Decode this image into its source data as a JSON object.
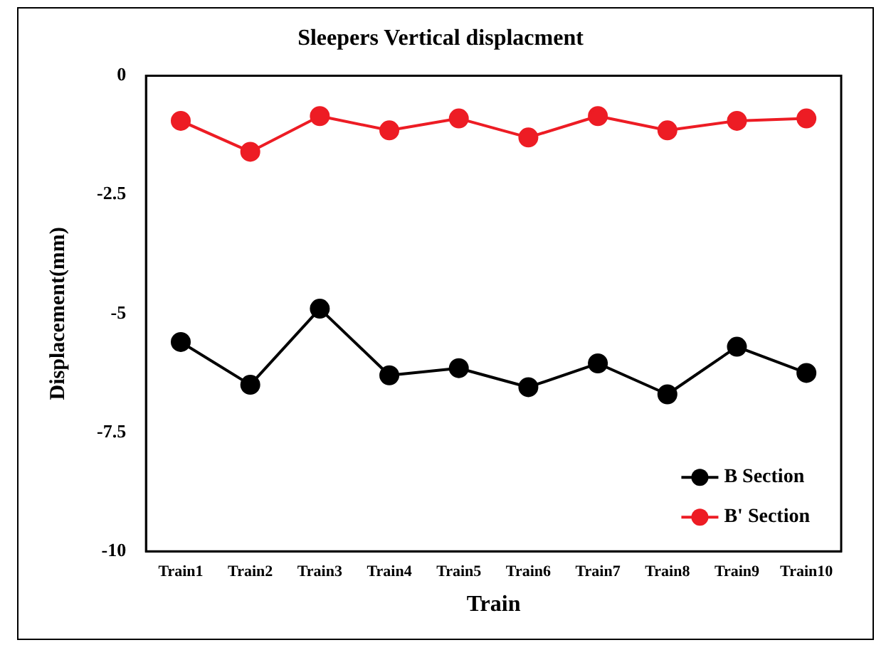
{
  "chart_data": {
    "type": "line",
    "title": "Sleepers Vertical displacment",
    "xlabel": "Train",
    "ylabel": "Displacement(mm)",
    "categories": [
      "Train1",
      "Train2",
      "Train3",
      "Train4",
      "Train5",
      "Train6",
      "Train7",
      "Train8",
      "Train9",
      "Train10"
    ],
    "series": [
      {
        "name": "B Section",
        "color": "#000000",
        "values": [
          -5.6,
          -6.5,
          -4.9,
          -6.3,
          -6.15,
          -6.55,
          -6.05,
          -6.7,
          -5.7,
          -6.25
        ]
      },
      {
        "name": "B' Section",
        "color": "#ed1c24",
        "values": [
          -0.95,
          -1.6,
          -0.85,
          -1.15,
          -0.9,
          -1.3,
          -0.85,
          -1.15,
          -0.95,
          -0.9
        ]
      }
    ],
    "ylim": [
      -10,
      0
    ],
    "yticks": [
      -10,
      -7.5,
      -5,
      -2.5,
      0
    ],
    "grid": false,
    "legend": "bottom right",
    "marker": "circle",
    "line_style": "solid"
  }
}
